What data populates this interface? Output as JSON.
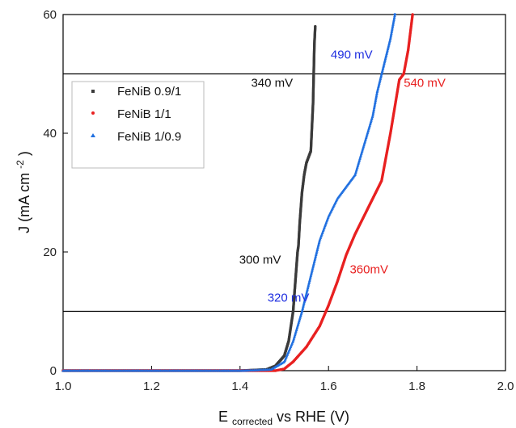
{
  "chart_data": {
    "type": "scatter",
    "xlabel_main": "E",
    "xlabel_sub": "corrected",
    "xlabel_rest": " vs RHE (V)",
    "ylabel_main": "J (mA cm",
    "ylabel_sup": "-2",
    "ylabel_end": ")",
    "xlim": [
      1.0,
      2.0
    ],
    "ylim": [
      0,
      60
    ],
    "x_ticks": [
      "1.0",
      "1.2",
      "1.4",
      "1.6",
      "1.8",
      "2.0"
    ],
    "y_ticks": [
      "0",
      "20",
      "40",
      "60"
    ],
    "x_tick_values": [
      1.0,
      1.2,
      1.4,
      1.6,
      1.8,
      2.0
    ],
    "y_tick_values": [
      0,
      20,
      40,
      60
    ],
    "reference_lines_y": [
      10,
      50
    ],
    "legend_position": "upper-left",
    "series": [
      {
        "name": "FeNiB 0.9/1",
        "color": "#3a3a3a",
        "marker": "square",
        "x": [
          1.0,
          1.2,
          1.4,
          1.46,
          1.48,
          1.5,
          1.51,
          1.52,
          1.525,
          1.53,
          1.532,
          1.535,
          1.54,
          1.545,
          1.55,
          1.555,
          1.56,
          1.565,
          1.568,
          1.57
        ],
        "y": [
          0,
          0,
          0,
          0.2,
          0.8,
          2.5,
          5,
          10,
          15,
          20,
          21,
          25,
          30,
          33,
          35,
          36,
          37,
          45,
          55,
          58
        ]
      },
      {
        "name": "FeNiB 1/1",
        "color": "#e82020",
        "marker": "circle",
        "x": [
          1.0,
          1.2,
          1.4,
          1.48,
          1.5,
          1.52,
          1.55,
          1.58,
          1.6,
          1.62,
          1.64,
          1.66,
          1.68,
          1.7,
          1.72,
          1.74,
          1.76,
          1.77,
          1.78,
          1.79
        ],
        "y": [
          0,
          0,
          0,
          0,
          0.3,
          1.5,
          4,
          7.5,
          11,
          15,
          19.5,
          23,
          26,
          29,
          32,
          40,
          49,
          50,
          54,
          60
        ]
      },
      {
        "name": "FeNiB 1/0.9",
        "color": "#1f6fe0",
        "marker": "triangle",
        "x": [
          1.0,
          1.2,
          1.4,
          1.47,
          1.5,
          1.52,
          1.54,
          1.56,
          1.58,
          1.6,
          1.62,
          1.64,
          1.66,
          1.68,
          1.7,
          1.71,
          1.72,
          1.73,
          1.74,
          1.75
        ],
        "y": [
          0,
          0,
          0,
          0.2,
          1.5,
          5,
          10,
          16,
          22,
          26,
          29,
          31,
          33,
          38,
          43,
          47,
          50,
          53,
          56,
          60
        ]
      }
    ],
    "annotations": [
      {
        "text": "340 mV",
        "x": 1.425,
        "y": 47.8,
        "color": "#111111"
      },
      {
        "text": "490 mV",
        "x": 1.605,
        "y": 52.6,
        "color": "#1f2fe0"
      },
      {
        "text": "540 mV",
        "x": 1.77,
        "y": 47.8,
        "color": "#e82020"
      },
      {
        "text": "300 mV",
        "x": 1.398,
        "y": 18.0,
        "color": "#111111"
      },
      {
        "text": "320 mV",
        "x": 1.462,
        "y": 11.6,
        "color": "#1f2fe0"
      },
      {
        "text": "360mV",
        "x": 1.648,
        "y": 16.4,
        "color": "#e82020"
      }
    ]
  }
}
